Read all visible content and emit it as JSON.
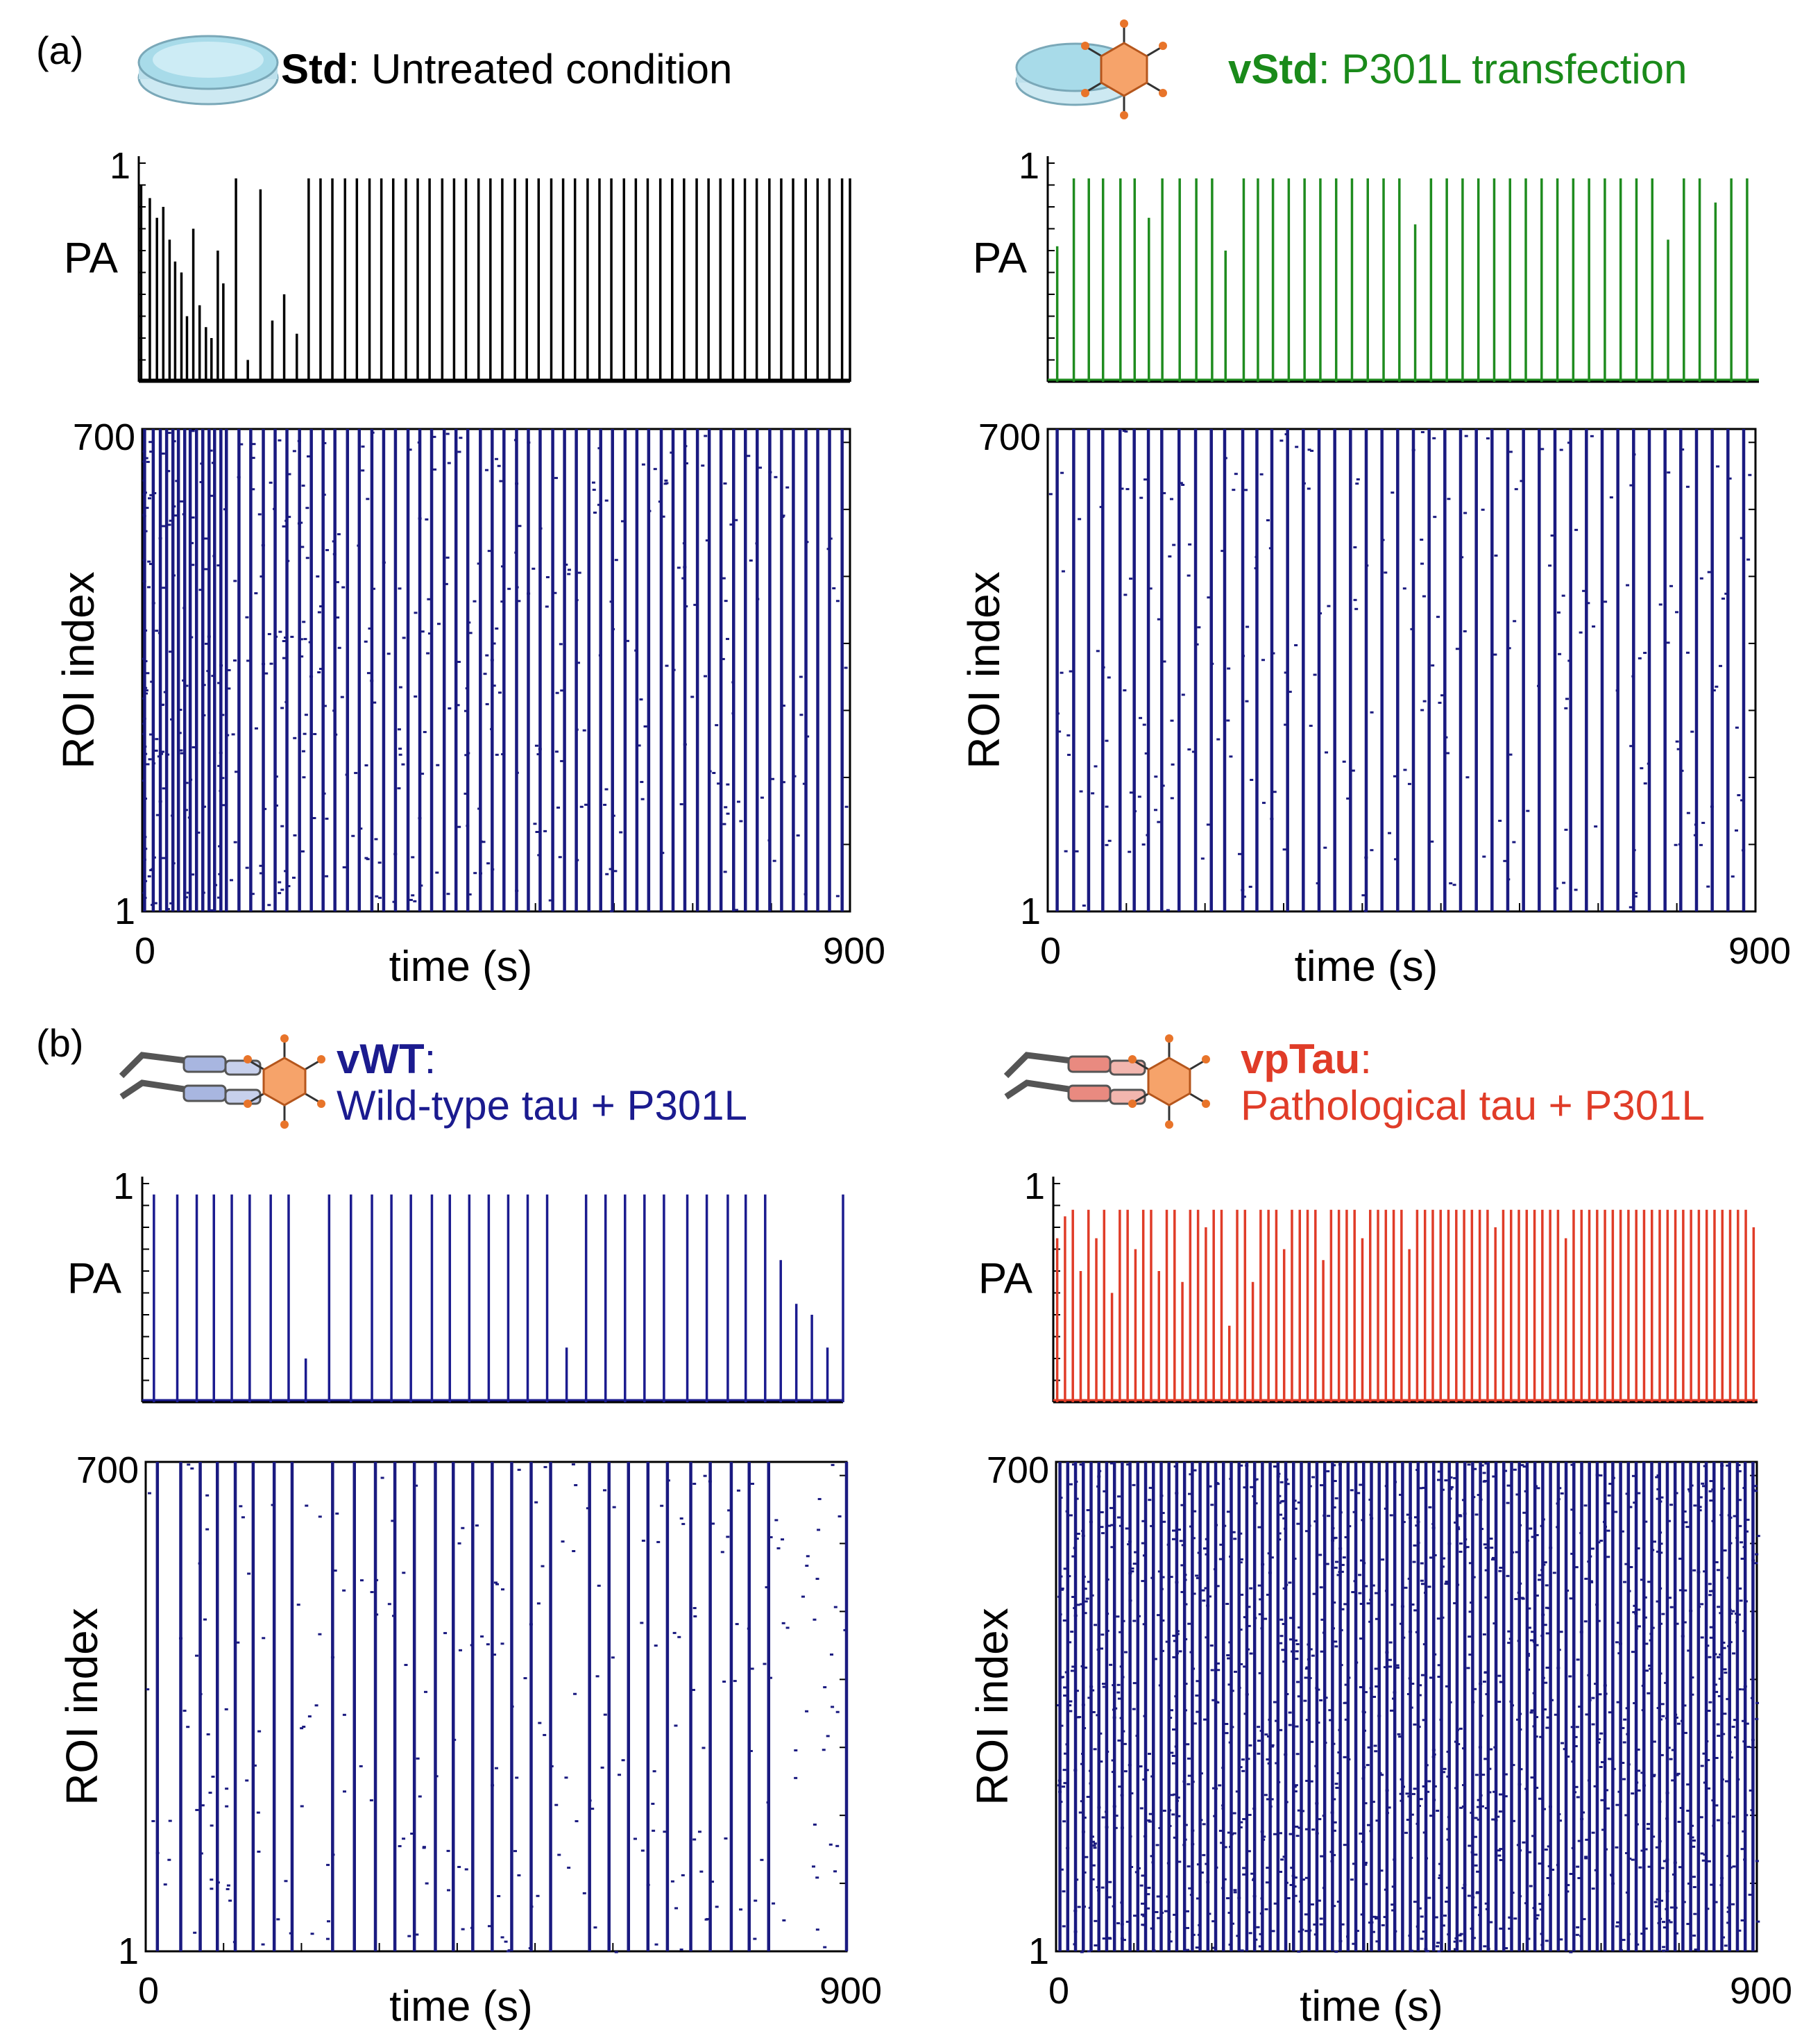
{
  "panel_labels": {
    "a": "(a)",
    "b": "(b)"
  },
  "panels": [
    {
      "bold": "Std",
      "rest": ": Untreated condition",
      "line2": "",
      "color": "#000000",
      "trace_color": "#000000",
      "icon": "petri-dish-icon"
    },
    {
      "bold": "vStd",
      "rest": ": P301L transfection",
      "line2": "",
      "color": "#1a8a1a",
      "trace_color": "#1f8c1f",
      "icon": "petri-dish-virus-icon"
    },
    {
      "bold": "vWT",
      "rest": ":",
      "line2": "Wild-type tau + P301L",
      "color": "#1b1b8f",
      "trace_color": "#1b1b8f",
      "icon": "tau-virus-icon"
    },
    {
      "bold": "vpTau",
      "rest": ":",
      "line2": "Pathological tau + P301L",
      "color": "#e03c28",
      "trace_color": "#e03c28",
      "icon": "ptau-virus-icon"
    }
  ],
  "raster_color": "#1a1a80",
  "chart_data": [
    {
      "type": "line",
      "panel": "Std",
      "ylabel": "PA",
      "ylim": [
        0,
        1
      ],
      "y_tick_labels": [
        "1"
      ],
      "xlim": [
        0,
        900
      ],
      "series": [
        {
          "x": [
            3,
            14,
            23,
            31,
            39,
            46,
            54,
            61,
            69,
            77,
            85,
            92,
            100,
            107,
            123,
            138,
            154,
            169,
            184,
            200,
            215,
            230,
            245,
            261,
            276,
            292,
            307,
            322,
            338,
            353,
            368,
            384,
            399,
            414,
            430,
            445,
            460,
            476,
            491,
            506,
            522,
            537,
            552,
            568,
            583,
            598,
            614,
            629,
            644,
            660,
            675,
            690,
            706,
            721,
            736,
            752,
            767,
            782,
            798,
            813,
            828,
            844,
            859,
            874,
            890,
            900
          ],
          "y": [
            0.9,
            0.84,
            0.75,
            0.8,
            0.65,
            0.55,
            0.5,
            0.3,
            0.7,
            0.35,
            0.25,
            0.2,
            0.6,
            0.45,
            0.93,
            0.1,
            0.88,
            0.28,
            0.4,
            0.22,
            0.93,
            0.93,
            0.93,
            0.93,
            0.93,
            0.93,
            0.93,
            0.93,
            0.93,
            0.93,
            0.93,
            0.93,
            0.93,
            0.93,
            0.93,
            0.93,
            0.93,
            0.93,
            0.93,
            0.93,
            0.93,
            0.93,
            0.93,
            0.93,
            0.93,
            0.93,
            0.93,
            0.93,
            0.93,
            0.93,
            0.93,
            0.93,
            0.93,
            0.93,
            0.93,
            0.93,
            0.93,
            0.93,
            0.93,
            0.93,
            0.93,
            0.93,
            0.93,
            0.93,
            0.93,
            0.93
          ]
        }
      ]
    },
    {
      "type": "line",
      "panel": "vStd",
      "ylabel": "PA",
      "ylim": [
        0,
        1
      ],
      "y_tick_labels": [
        "1"
      ],
      "xlim": [
        0,
        900
      ],
      "series": [
        {
          "x": [
            12,
            33,
            52,
            70,
            92,
            110,
            128,
            145,
            167,
            188,
            208,
            225,
            248,
            266,
            285,
            305,
            325,
            345,
            365,
            385,
            405,
            425,
            445,
            465,
            485,
            505,
            525,
            545,
            565,
            585,
            605,
            625,
            645,
            665,
            685,
            705,
            725,
            745,
            765,
            785,
            805,
            825,
            845,
            865,
            885
          ],
          "y": [
            0.62,
            0.93,
            0.93,
            0.93,
            0.93,
            0.93,
            0.75,
            0.93,
            0.93,
            0.93,
            0.93,
            0.6,
            0.93,
            0.93,
            0.93,
            0.93,
            0.93,
            0.93,
            0.93,
            0.93,
            0.93,
            0.93,
            0.93,
            0.72,
            0.93,
            0.93,
            0.93,
            0.93,
            0.93,
            0.93,
            0.93,
            0.93,
            0.93,
            0.93,
            0.93,
            0.93,
            0.93,
            0.93,
            0.93,
            0.65,
            0.93,
            0.93,
            0.82,
            0.93,
            0.93
          ]
        }
      ]
    },
    {
      "type": "line",
      "panel": "vWT",
      "ylabel": "PA",
      "ylim": [
        0,
        1
      ],
      "y_tick_labels": [
        "1"
      ],
      "xlim": [
        0,
        900
      ],
      "series": [
        {
          "x": [
            15,
            45,
            70,
            92,
            115,
            138,
            165,
            188,
            210,
            240,
            268,
            295,
            320,
            345,
            372,
            395,
            420,
            445,
            470,
            495,
            520,
            545,
            570,
            595,
            620,
            645,
            670,
            700,
            725,
            752,
            775,
            800,
            820,
            840,
            860,
            880,
            900
          ],
          "y": [
            0.95,
            0.95,
            0.95,
            0.95,
            0.95,
            0.95,
            0.95,
            0.95,
            0.2,
            0.95,
            0.95,
            0.95,
            0.95,
            0.95,
            0.95,
            0.95,
            0.95,
            0.95,
            0.95,
            0.95,
            0.95,
            0.25,
            0.95,
            0.95,
            0.95,
            0.95,
            0.95,
            0.95,
            0.95,
            0.95,
            0.95,
            0.95,
            0.65,
            0.45,
            0.4,
            0.25,
            0.95
          ]
        }
      ]
    },
    {
      "type": "line",
      "panel": "vpTau",
      "ylabel": "PA",
      "ylim": [
        0,
        1
      ],
      "y_tick_labels": [
        "1"
      ],
      "xlim": [
        0,
        900
      ],
      "series": [
        {
          "x": [
            5,
            15,
            25,
            35,
            45,
            55,
            65,
            75,
            85,
            95,
            105,
            115,
            125,
            135,
            145,
            155,
            165,
            175,
            185,
            195,
            205,
            215,
            225,
            235,
            245,
            255,
            265,
            275,
            285,
            295,
            305,
            315,
            325,
            335,
            345,
            355,
            365,
            375,
            385,
            395,
            405,
            415,
            425,
            435,
            445,
            455,
            465,
            475,
            485,
            495,
            505,
            515,
            525,
            535,
            545,
            555,
            565,
            575,
            585,
            595,
            605,
            615,
            625,
            635,
            645,
            655,
            665,
            675,
            685,
            695,
            705,
            715,
            725,
            735,
            745,
            755,
            765,
            775,
            785,
            795,
            805,
            815,
            825,
            835,
            845,
            855,
            865,
            875,
            885,
            895
          ],
          "y": [
            0.75,
            0.85,
            0.88,
            0.6,
            0.88,
            0.75,
            0.88,
            0.5,
            0.88,
            0.88,
            0.7,
            0.88,
            0.88,
            0.6,
            0.88,
            0.88,
            0.55,
            0.88,
            0.88,
            0.8,
            0.88,
            0.88,
            0.35,
            0.88,
            0.88,
            0.55,
            0.88,
            0.88,
            0.88,
            0.7,
            0.88,
            0.88,
            0.88,
            0.88,
            0.65,
            0.88,
            0.88,
            0.88,
            0.88,
            0.75,
            0.88,
            0.88,
            0.88,
            0.88,
            0.88,
            0.7,
            0.88,
            0.88,
            0.88,
            0.88,
            0.88,
            0.88,
            0.88,
            0.88,
            0.88,
            0.88,
            0.8,
            0.88,
            0.88,
            0.88,
            0.88,
            0.88,
            0.88,
            0.88,
            0.88,
            0.75,
            0.88,
            0.88,
            0.88,
            0.88,
            0.88,
            0.88,
            0.88,
            0.88,
            0.88,
            0.88,
            0.88,
            0.88,
            0.88,
            0.88,
            0.88,
            0.88,
            0.88,
            0.88,
            0.88,
            0.88,
            0.88,
            0.88,
            0.88,
            0.8
          ]
        }
      ]
    },
    {
      "type": "scatter",
      "panel": "Std",
      "xlabel": "time (s)",
      "ylabel": "ROI index",
      "xlim": [
        0,
        900
      ],
      "ylim": [
        1,
        700
      ],
      "x_tick_labels": [
        "0",
        "900"
      ],
      "y_tick_labels": [
        "1",
        "700"
      ],
      "bursts": [
        3,
        14,
        23,
        31,
        39,
        46,
        54,
        61,
        69,
        77,
        85,
        92,
        100,
        107,
        123,
        138,
        154,
        169,
        184,
        200,
        215,
        230,
        245,
        261,
        276,
        292,
        307,
        322,
        338,
        353,
        368,
        384,
        399,
        414,
        430,
        445,
        460,
        476,
        491,
        506,
        522,
        537,
        552,
        568,
        583,
        598,
        614,
        629,
        644,
        660,
        675,
        690,
        706,
        721,
        736,
        752,
        767,
        782,
        798,
        813,
        828,
        844,
        859,
        874,
        890
      ]
    },
    {
      "type": "scatter",
      "panel": "vStd",
      "xlabel": "time (s)",
      "ylabel": "ROI index",
      "xlim": [
        0,
        900
      ],
      "ylim": [
        1,
        700
      ],
      "x_tick_labels": [
        "0",
        "900"
      ],
      "y_tick_labels": [
        "1",
        "700"
      ],
      "bursts": [
        12,
        33,
        52,
        70,
        92,
        110,
        128,
        145,
        167,
        188,
        208,
        225,
        248,
        266,
        285,
        305,
        325,
        345,
        365,
        385,
        405,
        425,
        445,
        465,
        485,
        505,
        525,
        545,
        565,
        585,
        605,
        625,
        645,
        665,
        685,
        705,
        725,
        745,
        765,
        785,
        805,
        825,
        845,
        865,
        885
      ]
    },
    {
      "type": "scatter",
      "panel": "vWT",
      "xlabel": "time (s)",
      "ylabel": "ROI index",
      "xlim": [
        0,
        900
      ],
      "ylim": [
        1,
        700
      ],
      "x_tick_labels": [
        "0",
        "900"
      ],
      "y_tick_labels": [
        "1",
        "700"
      ],
      "bursts": [
        15,
        45,
        70,
        92,
        115,
        138,
        165,
        188,
        240,
        268,
        295,
        320,
        345,
        372,
        395,
        420,
        445,
        470,
        495,
        520,
        570,
        595,
        620,
        645,
        670,
        700,
        725,
        752,
        775,
        800,
        900
      ]
    },
    {
      "type": "scatter",
      "panel": "vpTau",
      "xlabel": "time (s)",
      "ylabel": "ROI index",
      "xlim": [
        0,
        900
      ],
      "ylim": [
        1,
        700
      ],
      "x_tick_labels": [
        "0",
        "900"
      ],
      "y_tick_labels": [
        "1",
        "700"
      ],
      "bursts": [
        5,
        15,
        25,
        35,
        45,
        55,
        65,
        75,
        85,
        95,
        105,
        115,
        125,
        135,
        145,
        155,
        165,
        175,
        185,
        195,
        205,
        215,
        225,
        235,
        245,
        255,
        265,
        275,
        285,
        295,
        305,
        315,
        325,
        335,
        345,
        355,
        365,
        375,
        385,
        395,
        405,
        415,
        425,
        435,
        445,
        455,
        465,
        475,
        485,
        495,
        505,
        515,
        525,
        535,
        545,
        555,
        565,
        575,
        585,
        595,
        605,
        615,
        625,
        635,
        645,
        655,
        665,
        675,
        685,
        695,
        705,
        715,
        725,
        735,
        745,
        755,
        765,
        775,
        785,
        795,
        805,
        815,
        825,
        835,
        845,
        855,
        865,
        875,
        885,
        895
      ]
    }
  ]
}
